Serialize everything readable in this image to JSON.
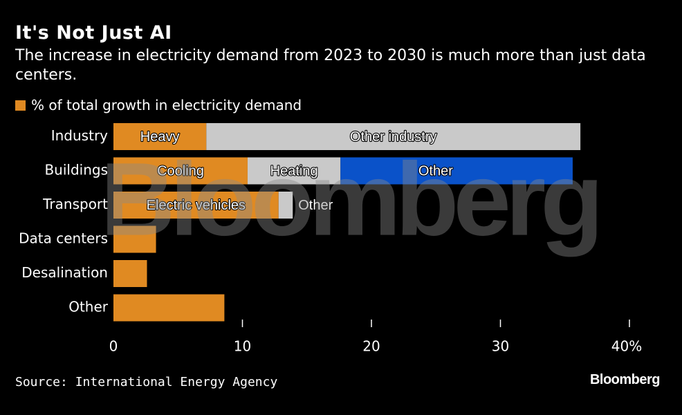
{
  "header": {
    "title": "It's Not Just AI",
    "subtitle": "The increase in electricity demand from 2023 to 2030 is much more than just data centers."
  },
  "legend": {
    "label": "% of total growth in electricity demand",
    "color": "#e08a22"
  },
  "watermark": "Bloomberg",
  "footer": {
    "source": "Source: International Energy Agency",
    "brand": "Bloomberg"
  },
  "chart_data": {
    "type": "bar",
    "orientation": "horizontal",
    "stacked": true,
    "categories": [
      "Industry",
      "Buildings",
      "Transport",
      "Data centers",
      "Desalination",
      "Other"
    ],
    "segments": [
      [
        {
          "label": "Heavy",
          "value": 7.2,
          "color": "#e08a22"
        },
        {
          "label": "Other industry",
          "value": 29.0,
          "color": "#c9c9c9"
        }
      ],
      [
        {
          "label": "Cooling",
          "value": 10.4,
          "color": "#e08a22"
        },
        {
          "label": "Heating",
          "value": 7.2,
          "color": "#c9c9c9"
        },
        {
          "label": "Other",
          "value": 18.0,
          "color": "#0a52c9"
        }
      ],
      [
        {
          "label": "Electric vehicles",
          "value": 12.8,
          "color": "#e08a22"
        },
        {
          "label": "Other",
          "value": 1.1,
          "color": "#c9c9c9"
        }
      ],
      [
        {
          "label": "",
          "value": 3.3,
          "color": "#e08a22"
        }
      ],
      [
        {
          "label": "",
          "value": 2.6,
          "color": "#e08a22"
        }
      ],
      [
        {
          "label": "",
          "value": 8.6,
          "color": "#e08a22"
        }
      ]
    ],
    "xlim": [
      0,
      40
    ],
    "xticks": [
      0,
      10,
      20,
      30,
      40
    ],
    "xtick_labels": [
      "0",
      "10",
      "20",
      "30",
      "40%"
    ],
    "grid": false,
    "legend_position": "top-left"
  }
}
